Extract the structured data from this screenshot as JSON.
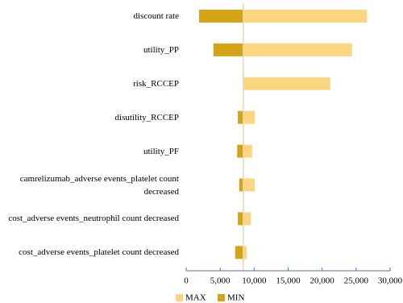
{
  "chart_data": {
    "type": "tornado",
    "categories": [
      "discount rate",
      "utility_PP",
      "risk_RCCEP",
      "disutility_RCCEP",
      "utility_PF",
      "camrelizumab_adverse events_platelet count decreased",
      "cost_adverse events_neutrophil count decreased",
      "cost_adverse events_platelet count decreased"
    ],
    "baseline": 8400,
    "series": [
      {
        "name": "MAX",
        "color": "#fcd581",
        "values": [
          26600,
          24400,
          21200,
          10100,
          9700,
          10100,
          9500,
          8900
        ]
      },
      {
        "name": "MIN",
        "color": "#d4a418",
        "values": [
          1900,
          4000,
          8400,
          7600,
          7500,
          7800,
          7600,
          7200
        ]
      }
    ],
    "xlim": [
      0,
      30000
    ],
    "xticks": [
      0,
      {
        "value": 5000,
        "label": "5,000"
      },
      {
        "value": 10000,
        "label": "10,000"
      },
      {
        "value": 15000,
        "label": "15,000"
      },
      {
        "value": 20000,
        "label": "20,000"
      },
      {
        "value": 25000,
        "label": "25,000"
      },
      {
        "value": 30000,
        "label": "30,000"
      }
    ],
    "legend": "bottom"
  }
}
